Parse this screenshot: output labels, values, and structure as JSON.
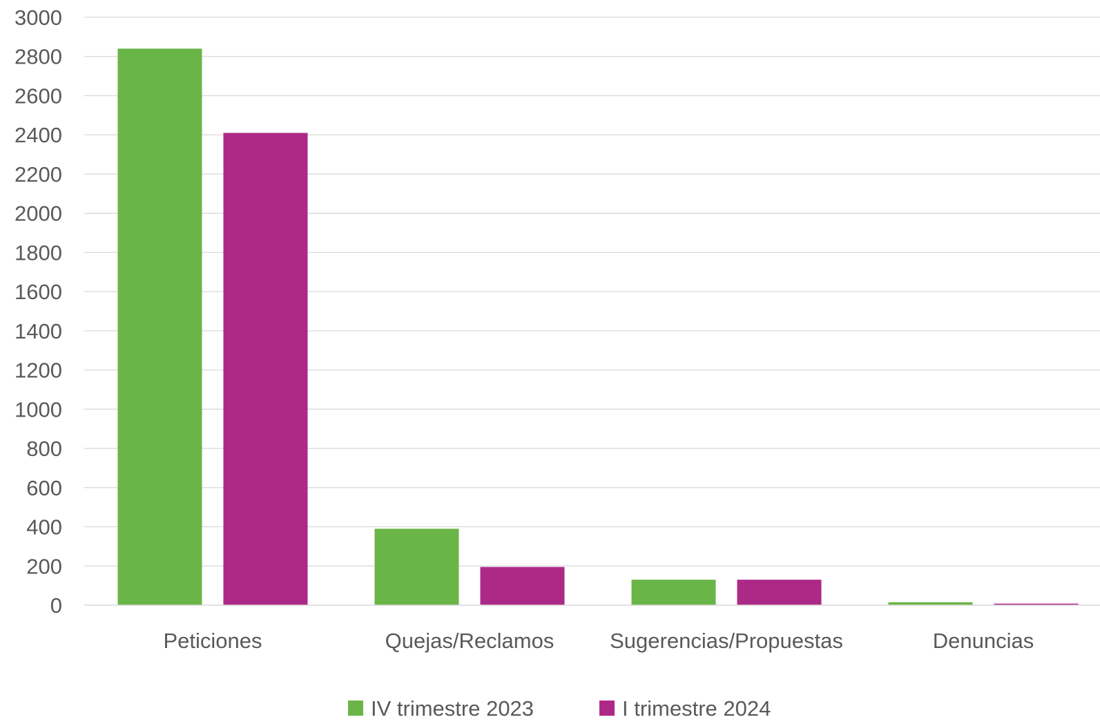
{
  "chart_data": {
    "type": "bar",
    "title": "",
    "xlabel": "",
    "ylabel": "",
    "categories": [
      "Peticiones",
      "Quejas/Reclamos",
      "Sugerencias/Propuestas",
      "Denuncias"
    ],
    "series": [
      {
        "name": "IV trimestre 2023",
        "color": "#6ab547",
        "values": [
          2840,
          390,
          130,
          15
        ]
      },
      {
        "name": "I trimestre 2024",
        "color": "#ad2987",
        "values": [
          2410,
          195,
          130,
          8
        ]
      }
    ],
    "ylim": [
      0,
      3000
    ],
    "yticks": [
      0,
      200,
      400,
      600,
      800,
      1000,
      1200,
      1400,
      1600,
      1800,
      2000,
      2200,
      2400,
      2600,
      2800,
      3000
    ],
    "grid": true,
    "legend_position": "bottom"
  }
}
